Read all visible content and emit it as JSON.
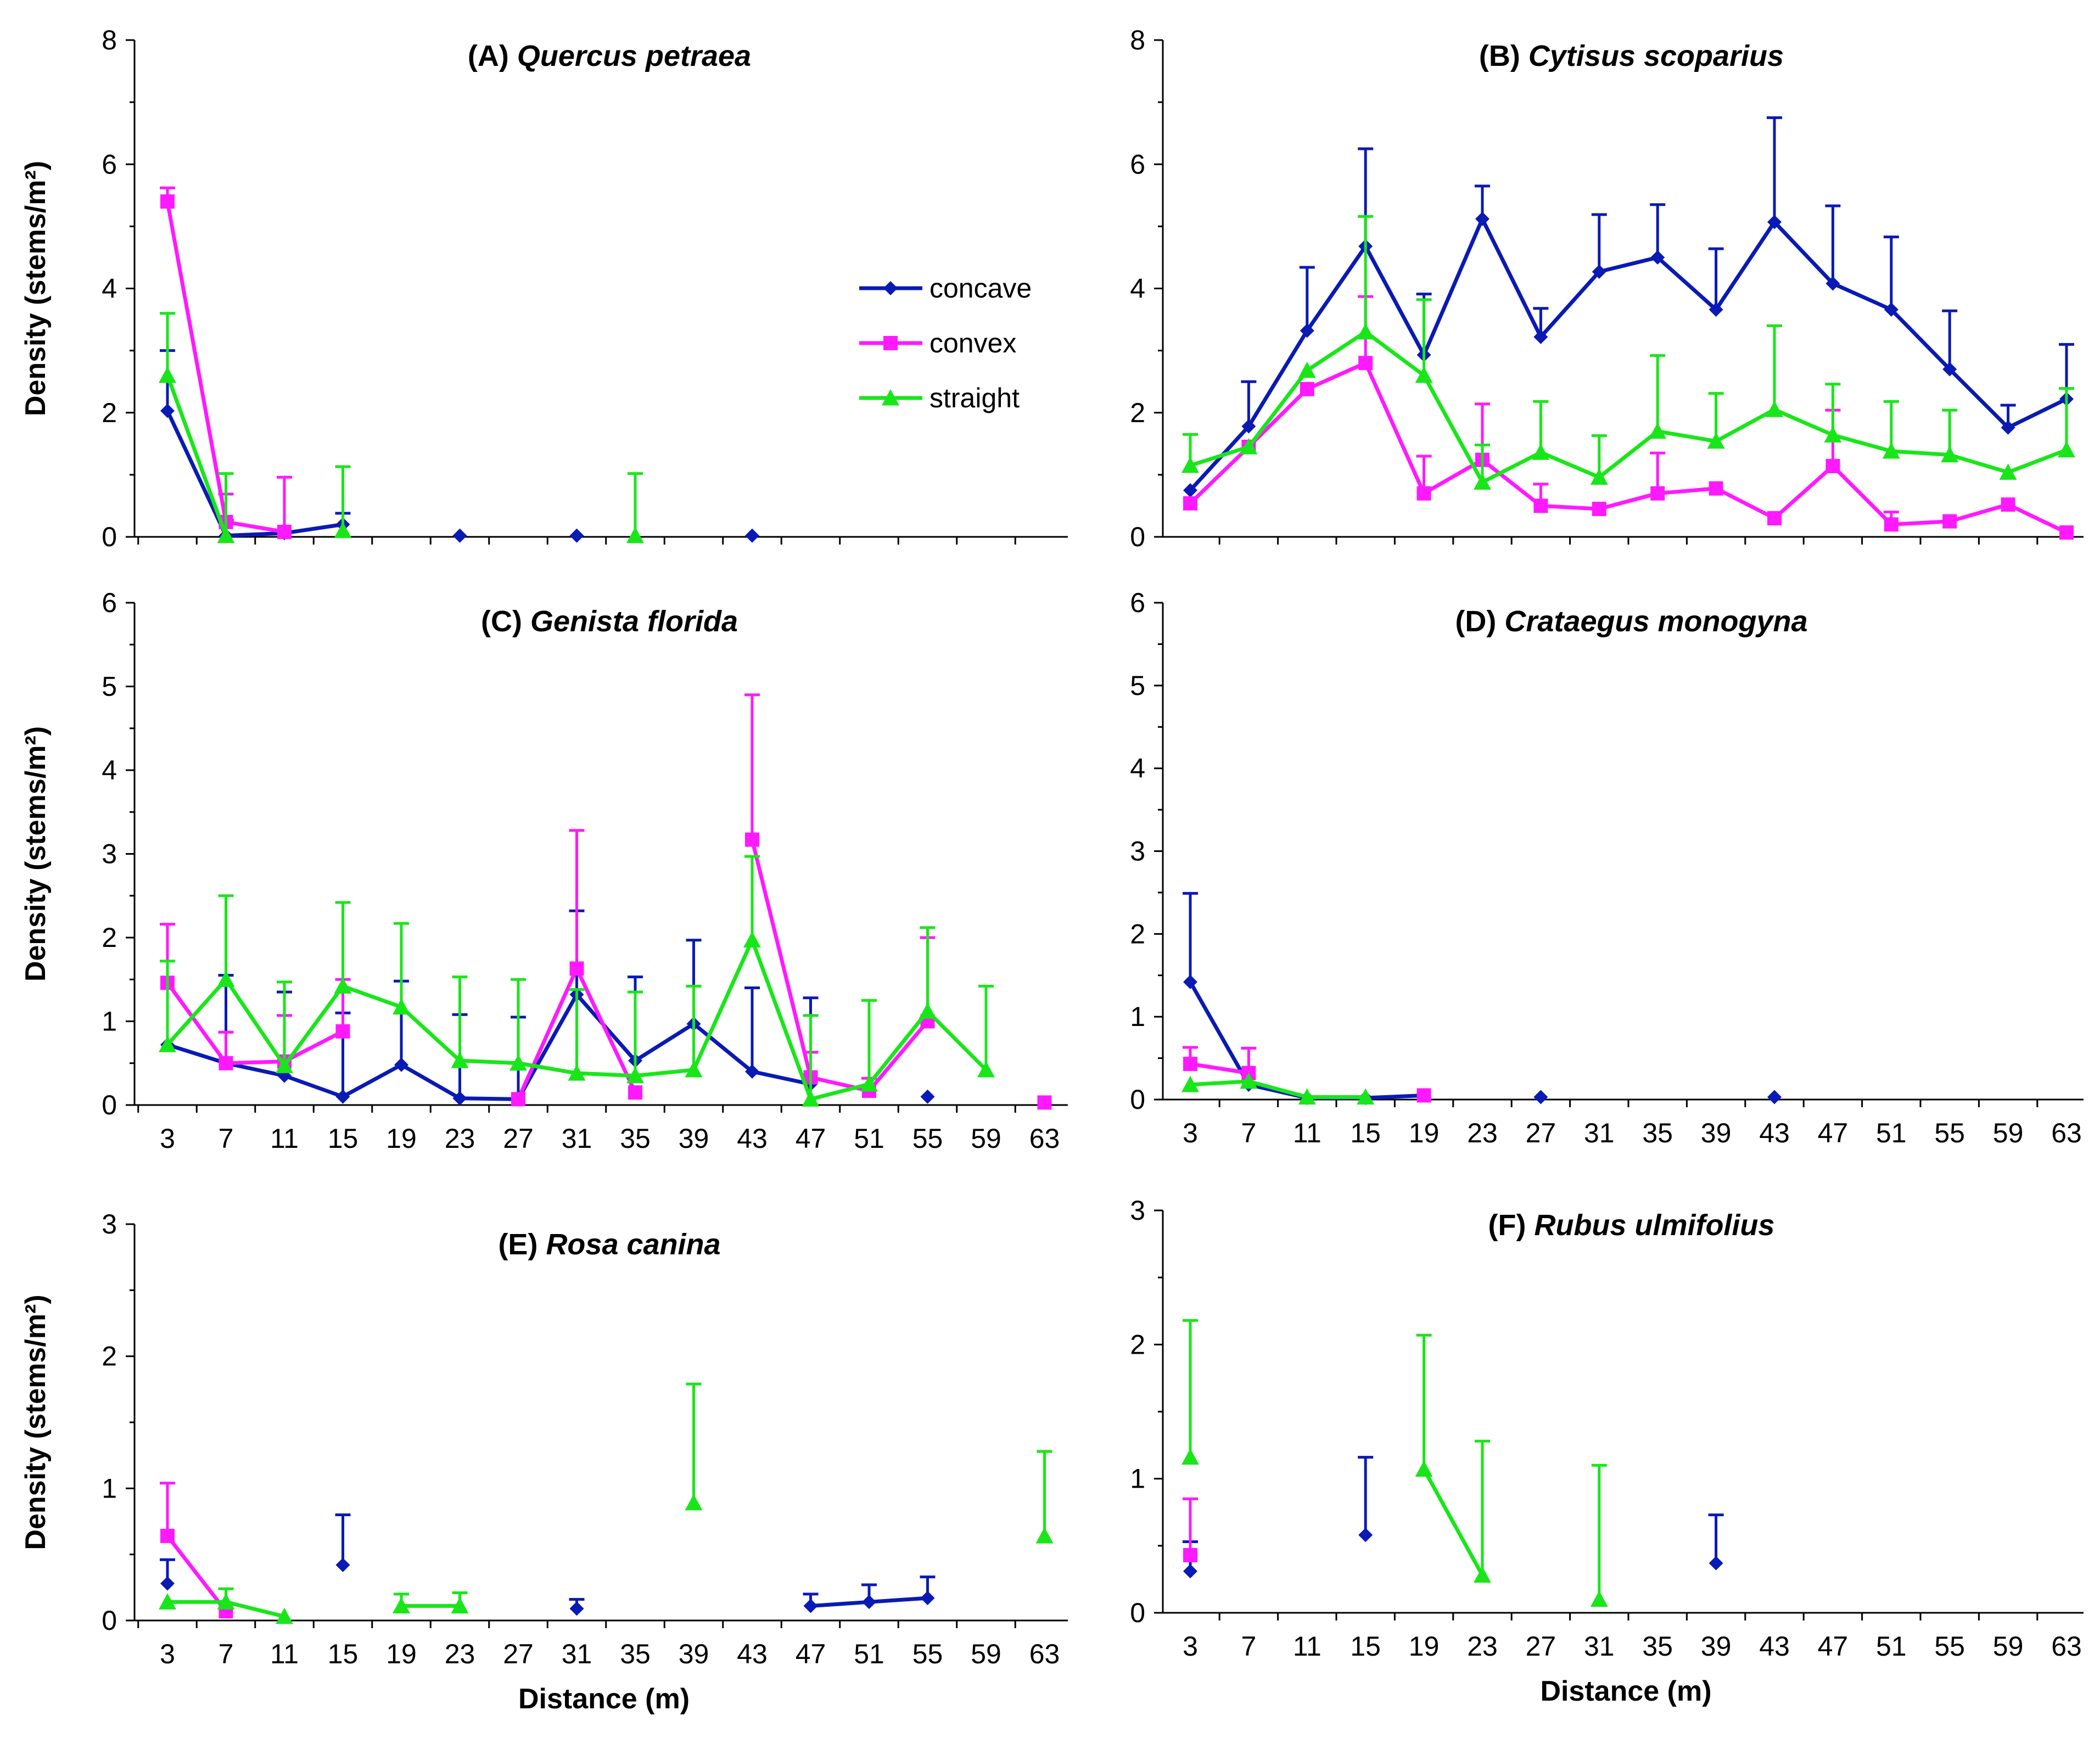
{
  "colors": {
    "concave": "#0a1ab4",
    "convex": "#ff19ff",
    "straight": "#19e619"
  },
  "legend": [
    {
      "key": "concave",
      "label": "concave"
    },
    {
      "key": "convex",
      "label": "convex"
    },
    {
      "key": "straight",
      "label": "straight"
    }
  ],
  "chart_data": [
    {
      "type": "line",
      "letter": "(A)",
      "species": "Quercus petraea",
      "xlabel": "",
      "ylabel": "Density (stems/m²)",
      "ylim": [
        0,
        8
      ],
      "yticks": [
        "0",
        "2",
        "4",
        "6",
        "8"
      ],
      "categories": [
        "3",
        "7",
        "11",
        "15",
        "19",
        "23",
        "27",
        "31",
        "35",
        "39",
        "43",
        "47",
        "51",
        "55",
        "59",
        "63"
      ],
      "show_xticks": false,
      "series": [
        {
          "key": "concave",
          "name": "concave",
          "points": [
            {
              "x": 3,
              "y": 2.03,
              "e": 0.97
            },
            {
              "x": 7,
              "y": 0.02,
              "e": 0.25
            },
            {
              "x": 11,
              "y": 0.06
            },
            {
              "x": 15,
              "y": 0.2,
              "e": 0.18
            },
            {
              "x": 23,
              "y": 0.02
            },
            {
              "x": 31,
              "y": 0.02
            },
            {
              "x": 43,
              "y": 0.02
            }
          ]
        },
        {
          "key": "convex",
          "name": "convex",
          "points": [
            {
              "x": 3,
              "y": 5.4,
              "e": 0.22
            },
            {
              "x": 7,
              "y": 0.24,
              "e": 0.45
            },
            {
              "x": 11,
              "y": 0.08,
              "e": 0.88
            }
          ]
        },
        {
          "key": "straight",
          "name": "straight",
          "points": [
            {
              "x": 3,
              "y": 2.6,
              "e": 1.0
            },
            {
              "x": 7,
              "y": 0.02,
              "e": 1.0
            },
            {
              "x": 15,
              "y": 0.1,
              "e": 1.03
            },
            {
              "x": 35,
              "y": 0.02,
              "e": 1.0
            }
          ]
        }
      ]
    },
    {
      "type": "line",
      "letter": "(B)",
      "species": "Cytisus scoparius",
      "xlabel": "",
      "ylabel": "",
      "ylim": [
        0,
        8
      ],
      "yticks": [
        "0",
        "2",
        "4",
        "6",
        "8"
      ],
      "categories": [
        "3",
        "7",
        "11",
        "15",
        "19",
        "23",
        "27",
        "31",
        "35",
        "39",
        "43",
        "47",
        "51",
        "55",
        "59",
        "63"
      ],
      "show_xticks": false,
      "series": [
        {
          "key": "concave",
          "name": "concave",
          "points": [
            {
              "x": 3,
              "y": 0.75
            },
            {
              "x": 7,
              "y": 1.78,
              "e": 0.72
            },
            {
              "x": 11,
              "y": 3.32,
              "e": 1.02
            },
            {
              "x": 15,
              "y": 4.68,
              "e": 1.57
            },
            {
              "x": 19,
              "y": 2.93,
              "e": 0.98
            },
            {
              "x": 23,
              "y": 5.12,
              "e": 0.53
            },
            {
              "x": 27,
              "y": 3.22,
              "e": 0.46
            },
            {
              "x": 31,
              "y": 4.27,
              "e": 0.92
            },
            {
              "x": 35,
              "y": 4.5,
              "e": 0.85
            },
            {
              "x": 39,
              "y": 3.66,
              "e": 0.98
            },
            {
              "x": 43,
              "y": 5.07,
              "e": 1.68
            },
            {
              "x": 47,
              "y": 4.08,
              "e": 1.25
            },
            {
              "x": 51,
              "y": 3.66,
              "e": 1.17
            },
            {
              "x": 55,
              "y": 2.7,
              "e": 0.94
            },
            {
              "x": 59,
              "y": 1.76,
              "e": 0.36
            },
            {
              "x": 63,
              "y": 2.22,
              "e": 0.88
            }
          ]
        },
        {
          "key": "convex",
          "name": "convex",
          "points": [
            {
              "x": 3,
              "y": 0.54
            },
            {
              "x": 7,
              "y": 1.45
            },
            {
              "x": 11,
              "y": 2.38
            },
            {
              "x": 15,
              "y": 2.8,
              "e": 1.07
            },
            {
              "x": 19,
              "y": 0.7,
              "e": 0.6
            },
            {
              "x": 23,
              "y": 1.24,
              "e": 0.9
            },
            {
              "x": 27,
              "y": 0.5,
              "e": 0.35
            },
            {
              "x": 31,
              "y": 0.45
            },
            {
              "x": 35,
              "y": 0.7,
              "e": 0.65
            },
            {
              "x": 39,
              "y": 0.78
            },
            {
              "x": 43,
              "y": 0.3
            },
            {
              "x": 47,
              "y": 1.14,
              "e": 0.9
            },
            {
              "x": 51,
              "y": 0.2,
              "e": 0.2
            },
            {
              "x": 55,
              "y": 0.25
            },
            {
              "x": 59,
              "y": 0.52
            },
            {
              "x": 63,
              "y": 0.07
            }
          ]
        },
        {
          "key": "straight",
          "name": "straight",
          "points": [
            {
              "x": 3,
              "y": 1.15,
              "e": 0.5
            },
            {
              "x": 7,
              "y": 1.45
            },
            {
              "x": 11,
              "y": 2.68
            },
            {
              "x": 15,
              "y": 3.3,
              "e": 1.86
            },
            {
              "x": 19,
              "y": 2.6,
              "e": 1.22
            },
            {
              "x": 23,
              "y": 0.88,
              "e": 0.6
            },
            {
              "x": 27,
              "y": 1.36,
              "e": 0.82
            },
            {
              "x": 31,
              "y": 0.96,
              "e": 0.67
            },
            {
              "x": 35,
              "y": 1.7,
              "e": 1.22
            },
            {
              "x": 39,
              "y": 1.54,
              "e": 0.77
            },
            {
              "x": 43,
              "y": 2.05,
              "e": 1.35
            },
            {
              "x": 47,
              "y": 1.64,
              "e": 0.82
            },
            {
              "x": 51,
              "y": 1.38,
              "e": 0.8
            },
            {
              "x": 55,
              "y": 1.32,
              "e": 0.72
            },
            {
              "x": 59,
              "y": 1.04
            },
            {
              "x": 63,
              "y": 1.4,
              "e": 0.99
            }
          ]
        }
      ]
    },
    {
      "type": "line",
      "letter": "(C)",
      "species": "Genista florida",
      "xlabel": "",
      "ylabel": "Density (stems/m²)",
      "ylim": [
        0,
        6
      ],
      "yticks": [
        "0",
        "1",
        "2",
        "3",
        "4",
        "5",
        "6"
      ],
      "categories": [
        "3",
        "7",
        "11",
        "15",
        "19",
        "23",
        "27",
        "31",
        "35",
        "39",
        "43",
        "47",
        "51",
        "55",
        "59",
        "63"
      ],
      "show_xticks": true,
      "series": [
        {
          "key": "concave",
          "name": "concave",
          "points": [
            {
              "x": 3,
              "y": 0.72
            },
            {
              "x": 7,
              "y": 0.5,
              "e": 1.05
            },
            {
              "x": 11,
              "y": 0.35,
              "e": 1.0
            },
            {
              "x": 15,
              "y": 0.1,
              "e": 1.0
            },
            {
              "x": 19,
              "y": 0.48,
              "e": 1.0
            },
            {
              "x": 23,
              "y": 0.08,
              "e": 1.0
            },
            {
              "x": 27,
              "y": 0.07,
              "e": 0.98
            },
            {
              "x": 31,
              "y": 1.32,
              "e": 1.0
            },
            {
              "x": 35,
              "y": 0.53,
              "e": 1.0
            },
            {
              "x": 39,
              "y": 0.97,
              "e": 1.0
            },
            {
              "x": 43,
              "y": 0.4,
              "e": 1.0
            },
            {
              "x": 47,
              "y": 0.25,
              "e": 1.03
            },
            {
              "x": 55,
              "y": 0.1
            }
          ]
        },
        {
          "key": "convex",
          "name": "convex",
          "points": [
            {
              "x": 3,
              "y": 1.46,
              "e": 0.7
            },
            {
              "x": 7,
              "y": 0.5,
              "e": 0.37
            },
            {
              "x": 11,
              "y": 0.52,
              "e": 0.55
            },
            {
              "x": 15,
              "y": 0.88,
              "e": 0.62
            },
            {
              "x": 27,
              "y": 0.07
            },
            {
              "x": 31,
              "y": 1.63,
              "e": 1.65
            },
            {
              "x": 35,
              "y": 0.15
            },
            {
              "x": 43,
              "y": 3.17,
              "e": 1.73
            },
            {
              "x": 47,
              "y": 0.33,
              "e": 0.3
            },
            {
              "x": 51,
              "y": 0.17,
              "e": 0.15
            },
            {
              "x": 55,
              "y": 1.0,
              "e": 1.0
            },
            {
              "x": 63,
              "y": 0.03
            }
          ]
        },
        {
          "key": "straight",
          "name": "straight",
          "points": [
            {
              "x": 3,
              "y": 0.72,
              "e": 1.0
            },
            {
              "x": 7,
              "y": 1.5,
              "e": 1.0
            },
            {
              "x": 11,
              "y": 0.47,
              "e": 1.0
            },
            {
              "x": 15,
              "y": 1.42,
              "e": 1.0
            },
            {
              "x": 19,
              "y": 1.17,
              "e": 1.0
            },
            {
              "x": 23,
              "y": 0.53,
              "e": 1.0
            },
            {
              "x": 27,
              "y": 0.5,
              "e": 1.0
            },
            {
              "x": 31,
              "y": 0.38,
              "e": 1.0
            },
            {
              "x": 35,
              "y": 0.35,
              "e": 1.0
            },
            {
              "x": 39,
              "y": 0.42,
              "e": 1.0
            },
            {
              "x": 43,
              "y": 1.97,
              "e": 1.0
            },
            {
              "x": 47,
              "y": 0.07,
              "e": 1.0
            },
            {
              "x": 51,
              "y": 0.25,
              "e": 1.0
            },
            {
              "x": 55,
              "y": 1.12,
              "e": 1.0
            },
            {
              "x": 59,
              "y": 0.42,
              "e": 1.0
            }
          ]
        }
      ]
    },
    {
      "type": "line",
      "letter": "(D)",
      "species": "Crataegus monogyna",
      "xlabel": "",
      "ylabel": "",
      "ylim": [
        0,
        6
      ],
      "yticks": [
        "0",
        "1",
        "2",
        "3",
        "4",
        "5",
        "6"
      ],
      "categories": [
        "3",
        "7",
        "11",
        "15",
        "19",
        "23",
        "27",
        "31",
        "35",
        "39",
        "43",
        "47",
        "51",
        "55",
        "59",
        "63"
      ],
      "show_xticks": true,
      "series": [
        {
          "key": "concave",
          "name": "concave",
          "points": [
            {
              "x": 3,
              "y": 1.42,
              "e": 1.07
            },
            {
              "x": 7,
              "y": 0.18
            },
            {
              "x": 11,
              "y": 0.02
            },
            {
              "x": 15,
              "y": 0.02
            },
            {
              "x": 19,
              "y": 0.05
            },
            {
              "x": 27,
              "y": 0.03
            },
            {
              "x": 43,
              "y": 0.03
            }
          ]
        },
        {
          "key": "convex",
          "name": "convex",
          "points": [
            {
              "x": 3,
              "y": 0.43,
              "e": 0.2
            },
            {
              "x": 7,
              "y": 0.32,
              "e": 0.3
            },
            {
              "x": 19,
              "y": 0.05
            }
          ]
        },
        {
          "key": "straight",
          "name": "straight",
          "points": [
            {
              "x": 3,
              "y": 0.18
            },
            {
              "x": 7,
              "y": 0.22
            },
            {
              "x": 11,
              "y": 0.03
            },
            {
              "x": 15,
              "y": 0.03
            }
          ]
        }
      ]
    },
    {
      "type": "line",
      "letter": "(E)",
      "species": "Rosa canina",
      "xlabel": "Distance (m)",
      "ylabel": "Density (stems/m²)",
      "ylim": [
        0,
        3
      ],
      "yticks": [
        "0",
        "1",
        "2",
        "3"
      ],
      "categories": [
        "3",
        "7",
        "11",
        "15",
        "19",
        "23",
        "27",
        "31",
        "35",
        "39",
        "43",
        "47",
        "51",
        "55",
        "59",
        "63"
      ],
      "show_xticks": true,
      "series": [
        {
          "key": "concave",
          "name": "concave",
          "points": [
            {
              "x": 3,
              "y": 0.28,
              "e": 0.18
            },
            {
              "x": 15,
              "y": 0.42,
              "e": 0.38
            },
            {
              "x": 31,
              "y": 0.09,
              "e": 0.07
            },
            {
              "x": 47,
              "y": 0.11,
              "e": 0.09
            },
            {
              "x": 51,
              "y": 0.14,
              "e": 0.13
            },
            {
              "x": 55,
              "y": 0.17,
              "e": 0.16
            }
          ]
        },
        {
          "key": "convex",
          "name": "convex",
          "points": [
            {
              "x": 3,
              "y": 0.64,
              "e": 0.4
            },
            {
              "x": 7,
              "y": 0.07
            }
          ]
        },
        {
          "key": "straight",
          "name": "straight",
          "points": [
            {
              "x": 3,
              "y": 0.14
            },
            {
              "x": 7,
              "y": 0.14,
              "e": 0.1
            },
            {
              "x": 11,
              "y": 0.03
            },
            {
              "x": 19,
              "y": 0.11,
              "e": 0.09
            },
            {
              "x": 23,
              "y": 0.11,
              "e": 0.1
            },
            {
              "x": 39,
              "y": 0.89,
              "e": 0.9
            },
            {
              "x": 63,
              "y": 0.64,
              "e": 0.64
            }
          ]
        }
      ]
    },
    {
      "type": "line",
      "letter": "(F)",
      "species": "Rubus ulmifolius",
      "xlabel": "Distance (m)",
      "ylabel": "",
      "ylim": [
        0,
        3
      ],
      "yticks": [
        "0",
        "1",
        "2",
        "3"
      ],
      "categories": [
        "3",
        "7",
        "11",
        "15",
        "19",
        "23",
        "27",
        "31",
        "35",
        "39",
        "43",
        "47",
        "51",
        "55",
        "59",
        "63"
      ],
      "show_xticks": true,
      "series": [
        {
          "key": "concave",
          "name": "concave",
          "points": [
            {
              "x": 3,
              "y": 0.31,
              "e": 0.22
            },
            {
              "x": 15,
              "y": 0.58,
              "e": 0.58
            },
            {
              "x": 39,
              "y": 0.37,
              "e": 0.36
            }
          ]
        },
        {
          "key": "convex",
          "name": "convex",
          "points": [
            {
              "x": 3,
              "y": 0.43,
              "e": 0.42
            }
          ]
        },
        {
          "key": "straight",
          "name": "straight",
          "points": [
            {
              "x": 3,
              "y": 1.16,
              "e": 1.02
            },
            {
              "x": 19,
              "y": 1.07,
              "e": 1.0
            },
            {
              "x": 23,
              "y": 0.28,
              "e": 1.0
            },
            {
              "x": 31,
              "y": 0.1,
              "e": 1.0
            }
          ]
        }
      ]
    }
  ]
}
